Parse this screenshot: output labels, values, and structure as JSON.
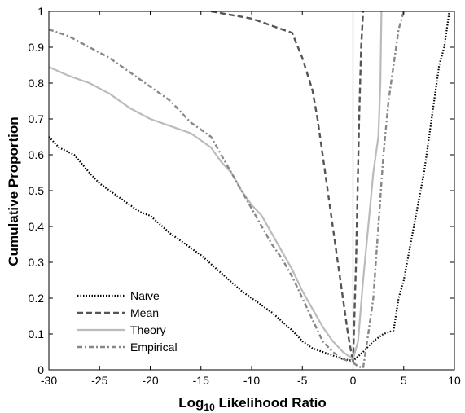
{
  "chart_data": {
    "type": "line",
    "xlabel_base": "Log",
    "xlabel_sub": "10",
    "xlabel_rest": " Likelihood Ratio",
    "ylabel": "Cumulative Proportion",
    "xlim": [
      -30,
      10
    ],
    "ylim": [
      0,
      1
    ],
    "xticks": [
      -30,
      -25,
      -20,
      -15,
      -10,
      -5,
      0,
      5,
      10
    ],
    "yticks": [
      0,
      0.1,
      0.2,
      0.3,
      0.4,
      0.5,
      0.6,
      0.7,
      0.8,
      0.9,
      1
    ],
    "legend_position": "bottom-left",
    "grid": false,
    "reference_line_x": 0,
    "series": [
      {
        "name": "Naive",
        "color": "#000000",
        "dash": "dotted",
        "points": [
          [
            -30,
            0.65
          ],
          [
            -29,
            0.62
          ],
          [
            -27.5,
            0.6
          ],
          [
            -26,
            0.55
          ],
          [
            -25,
            0.52
          ],
          [
            -23,
            0.48
          ],
          [
            -21,
            0.44
          ],
          [
            -20,
            0.43
          ],
          [
            -18,
            0.38
          ],
          [
            -16,
            0.34
          ],
          [
            -15,
            0.32
          ],
          [
            -13,
            0.27
          ],
          [
            -11,
            0.22
          ],
          [
            -10,
            0.2
          ],
          [
            -8,
            0.16
          ],
          [
            -6,
            0.11
          ],
          [
            -5,
            0.08
          ],
          [
            -4,
            0.06
          ],
          [
            -3,
            0.05
          ],
          [
            -2,
            0.04
          ],
          [
            -1,
            0.03
          ],
          [
            0,
            0.025
          ],
          [
            1,
            0.05
          ],
          [
            2,
            0.08
          ],
          [
            3,
            0.1
          ],
          [
            4,
            0.11
          ],
          [
            4.5,
            0.2
          ],
          [
            5,
            0.25
          ],
          [
            6,
            0.4
          ],
          [
            7,
            0.55
          ],
          [
            7.5,
            0.65
          ],
          [
            8,
            0.75
          ],
          [
            8.5,
            0.85
          ],
          [
            9,
            0.9
          ],
          [
            9.5,
            1.0
          ]
        ]
      },
      {
        "name": "Mean",
        "color": "#555555",
        "dash": "dashed",
        "points": [
          [
            -14,
            1.0
          ],
          [
            -12,
            0.99
          ],
          [
            -10,
            0.98
          ],
          [
            -8,
            0.96
          ],
          [
            -6,
            0.94
          ],
          [
            -5,
            0.87
          ],
          [
            -4,
            0.78
          ],
          [
            -3.5,
            0.7
          ],
          [
            -3,
            0.6
          ],
          [
            -2.5,
            0.5
          ],
          [
            -2,
            0.4
          ],
          [
            -1.5,
            0.3
          ],
          [
            -1,
            0.2
          ],
          [
            -0.5,
            0.1
          ],
          [
            0,
            0.02
          ],
          [
            0.3,
            0.3
          ],
          [
            0.6,
            0.7
          ],
          [
            0.8,
            0.9
          ],
          [
            1,
            1.0
          ]
        ]
      },
      {
        "name": "Theory",
        "color": "#bbbbbb",
        "dash": "solid",
        "points": [
          [
            -30,
            0.845
          ],
          [
            -28,
            0.82
          ],
          [
            -26,
            0.8
          ],
          [
            -24,
            0.77
          ],
          [
            -22,
            0.73
          ],
          [
            -20,
            0.7
          ],
          [
            -18,
            0.68
          ],
          [
            -16,
            0.66
          ],
          [
            -15,
            0.64
          ],
          [
            -14,
            0.62
          ],
          [
            -13,
            0.58
          ],
          [
            -12,
            0.55
          ],
          [
            -11,
            0.5
          ],
          [
            -10,
            0.46
          ],
          [
            -9,
            0.43
          ],
          [
            -8,
            0.38
          ],
          [
            -7,
            0.33
          ],
          [
            -6,
            0.28
          ],
          [
            -5,
            0.22
          ],
          [
            -4,
            0.17
          ],
          [
            -3,
            0.12
          ],
          [
            -2,
            0.08
          ],
          [
            -1,
            0.05
          ],
          [
            0,
            0.03
          ],
          [
            0.5,
            0.08
          ],
          [
            1,
            0.25
          ],
          [
            1.5,
            0.4
          ],
          [
            2,
            0.55
          ],
          [
            2.5,
            0.65
          ],
          [
            2.7,
            0.8
          ],
          [
            2.8,
            1.0
          ]
        ]
      },
      {
        "name": "Empirical",
        "color": "#888888",
        "dash": "dashdot",
        "points": [
          [
            -30,
            0.95
          ],
          [
            -28,
            0.93
          ],
          [
            -26,
            0.9
          ],
          [
            -24,
            0.87
          ],
          [
            -22,
            0.83
          ],
          [
            -20,
            0.79
          ],
          [
            -18,
            0.75
          ],
          [
            -16,
            0.69
          ],
          [
            -15,
            0.67
          ],
          [
            -14,
            0.65
          ],
          [
            -13,
            0.6
          ],
          [
            -12,
            0.55
          ],
          [
            -11,
            0.5
          ],
          [
            -10,
            0.45
          ],
          [
            -9,
            0.4
          ],
          [
            -8,
            0.35
          ],
          [
            -7,
            0.31
          ],
          [
            -6,
            0.26
          ],
          [
            -5,
            0.2
          ],
          [
            -4,
            0.14
          ],
          [
            -3,
            0.08
          ],
          [
            -2,
            0.05
          ],
          [
            -1,
            0.03
          ],
          [
            0,
            0.02
          ],
          [
            0.5,
            0.01
          ],
          [
            1,
            0.005
          ],
          [
            1.5,
            0.1
          ],
          [
            2,
            0.2
          ],
          [
            2.5,
            0.4
          ],
          [
            3,
            0.6
          ],
          [
            3.5,
            0.75
          ],
          [
            4,
            0.85
          ],
          [
            4.5,
            0.95
          ],
          [
            5,
            1.0
          ]
        ]
      }
    ]
  }
}
